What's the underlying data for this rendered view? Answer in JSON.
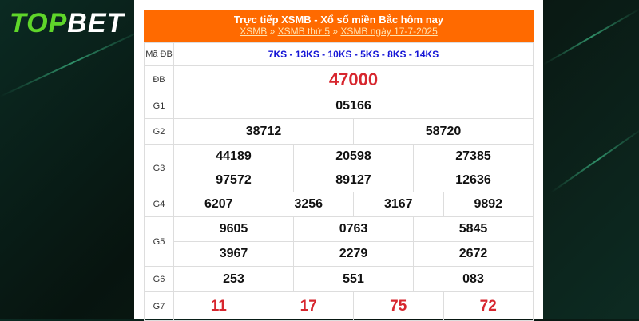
{
  "brand": {
    "logo_top": "TOP",
    "logo_bet": "BET"
  },
  "header": {
    "title": "Trực tiếp XSMB - Xổ số miền Bắc hôm nay",
    "breadcrumb": [
      "XSMB",
      "XSMB thứ 5",
      "XSMB ngày 17-7-2025"
    ],
    "sep": "»"
  },
  "colors": {
    "header": "#ff6a00",
    "special": "#d7262e",
    "code": "#1515d6"
  },
  "rows": {
    "ma_db": {
      "label": "Mã ĐB",
      "value": "7KS - 13KS - 10KS - 5KS - 8KS - 14KS"
    },
    "db": {
      "label": "ĐB",
      "value": "47000"
    },
    "g1": {
      "label": "G1",
      "values": [
        "05166"
      ]
    },
    "g2": {
      "label": "G2",
      "values": [
        "38712",
        "58720"
      ]
    },
    "g3": {
      "label": "G3",
      "values": [
        "44189",
        "20598",
        "27385",
        "97572",
        "89127",
        "12636"
      ]
    },
    "g4": {
      "label": "G4",
      "values": [
        "6207",
        "3256",
        "3167",
        "9892"
      ]
    },
    "g5": {
      "label": "G5",
      "values": [
        "9605",
        "0763",
        "5845",
        "3967",
        "2279",
        "2672"
      ]
    },
    "g6": {
      "label": "G6",
      "values": [
        "253",
        "551",
        "083"
      ]
    },
    "g7": {
      "label": "G7",
      "values": [
        "11",
        "17",
        "75",
        "72"
      ]
    }
  }
}
